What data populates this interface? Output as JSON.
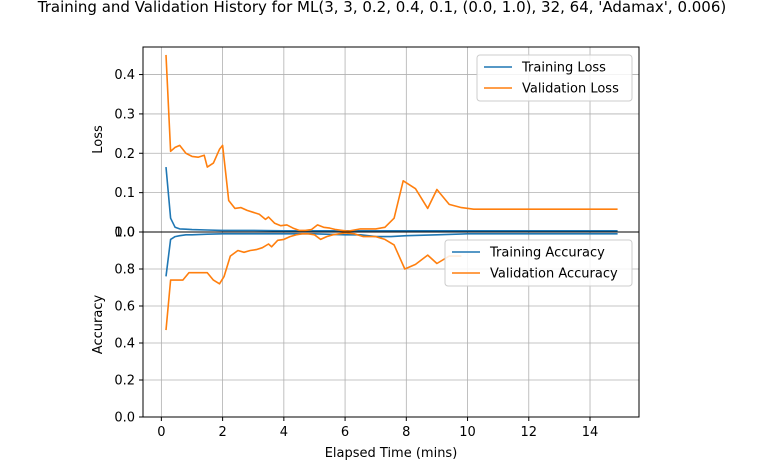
{
  "chart_data": {
    "type": "line",
    "title": "Training and Validation History for ML(3, 3, 0.2, 0.4, 0.1, (0.0, 1.0), 32, 64, 'Adamax', 0.006)",
    "xlabel": "Elapsed Time (mins)",
    "xlim": [
      -0.6,
      15.6
    ],
    "xticks": [
      0,
      2,
      4,
      6,
      8,
      10,
      12,
      14
    ],
    "grid": true,
    "panels": [
      {
        "ylabel": "Loss",
        "ylim": [
          0,
          0.47
        ],
        "yticks": [
          "0.0",
          "0.1",
          "0.2",
          "0.3",
          "0.4"
        ],
        "ytick_values": [
          0,
          0.1,
          0.2,
          0.3,
          0.4
        ],
        "legend_position": "top-right",
        "series": [
          {
            "name": "Training Loss",
            "color": "#1f77b4",
            "x": [
              0.15,
              0.3,
              0.45,
              0.6,
              0.8,
              1.0,
              1.5,
              2.0,
              3.0,
              4.0,
              5.0,
              6.0,
              7.0,
              8.0,
              9.0,
              10.0,
              11.0,
              12.0,
              13.0,
              14.0,
              14.9
            ],
            "y": [
              0.165,
              0.035,
              0.012,
              0.008,
              0.007,
              0.006,
              0.005,
              0.004,
              0.004,
              0.003,
              0.003,
              0.003,
              0.003,
              0.003,
              0.003,
              0.003,
              0.003,
              0.003,
              0.003,
              0.003,
              0.003
            ]
          },
          {
            "name": "Validation Loss",
            "color": "#ff7f0e",
            "x": [
              0.15,
              0.3,
              0.45,
              0.6,
              0.8,
              1.0,
              1.2,
              1.4,
              1.5,
              1.7,
              1.9,
              2.0,
              2.1,
              2.2,
              2.4,
              2.6,
              2.8,
              3.0,
              3.2,
              3.4,
              3.5,
              3.7,
              3.9,
              4.1,
              4.3,
              4.5,
              4.7,
              4.9,
              5.1,
              5.3,
              5.5,
              5.7,
              5.9,
              6.1,
              6.3,
              6.5,
              6.8,
              7.0,
              7.3,
              7.6,
              7.9,
              8.3,
              8.7,
              9.0,
              9.4,
              9.8,
              10.2,
              11.0,
              12.0,
              13.0,
              14.0,
              14.9
            ],
            "y": [
              0.45,
              0.205,
              0.215,
              0.22,
              0.2,
              0.192,
              0.19,
              0.195,
              0.165,
              0.175,
              0.21,
              0.22,
              0.15,
              0.08,
              0.06,
              0.062,
              0.055,
              0.05,
              0.045,
              0.032,
              0.038,
              0.022,
              0.016,
              0.018,
              0.01,
              0.004,
              0.004,
              0.006,
              0.018,
              0.012,
              0.01,
              0.006,
              0.004,
              0.002,
              0.005,
              0.008,
              0.008,
              0.008,
              0.012,
              0.035,
              0.13,
              0.11,
              0.06,
              0.108,
              0.07,
              0.062,
              0.058,
              0.058,
              0.058,
              0.058,
              0.058,
              0.058
            ]
          }
        ]
      },
      {
        "ylabel": "Accuracy",
        "ylim": [
          0,
          1.0
        ],
        "yticks": [
          "0.0",
          "0.2",
          "0.4",
          "0.6",
          "0.8",
          "1.0"
        ],
        "ytick_values": [
          0,
          0.2,
          0.4,
          0.6,
          0.8,
          1.0
        ],
        "legend_position": "top-right",
        "series": [
          {
            "name": "Training Accuracy",
            "color": "#1f77b4",
            "x": [
              0.15,
              0.3,
              0.45,
              0.6,
              0.8,
              1.0,
              1.5,
              2.0,
              3.0,
              4.0,
              5.0,
              6.0,
              6.5,
              7.0,
              7.5,
              8.0,
              9.0,
              10.0,
              11.0,
              12.0,
              13.0,
              14.0,
              14.9
            ],
            "y": [
              0.76,
              0.96,
              0.975,
              0.98,
              0.985,
              0.985,
              0.988,
              0.99,
              0.99,
              0.99,
              0.99,
              0.985,
              0.985,
              0.975,
              0.975,
              0.98,
              0.985,
              0.99,
              0.99,
              0.99,
              0.99,
              0.99,
              0.99
            ]
          },
          {
            "name": "Validation Accuracy",
            "color": "#ff7f0e",
            "x": [
              0.15,
              0.3,
              0.5,
              0.7,
              0.9,
              1.2,
              1.5,
              1.7,
              1.9,
              2.05,
              2.25,
              2.5,
              2.7,
              2.9,
              3.1,
              3.3,
              3.5,
              3.6,
              3.8,
              4.0,
              4.2,
              4.4,
              4.6,
              4.8,
              5.0,
              5.2,
              5.4,
              5.6,
              5.8,
              6.0,
              6.3,
              6.6,
              7.0,
              7.3,
              7.6,
              7.95,
              8.3,
              8.7,
              9.0,
              9.4,
              9.8
            ],
            "y": [
              0.47,
              0.74,
              0.74,
              0.74,
              0.78,
              0.78,
              0.78,
              0.74,
              0.72,
              0.76,
              0.87,
              0.9,
              0.89,
              0.9,
              0.905,
              0.915,
              0.935,
              0.92,
              0.955,
              0.96,
              0.975,
              0.985,
              0.99,
              0.99,
              0.985,
              0.96,
              0.975,
              0.985,
              0.99,
              0.995,
              0.99,
              0.975,
              0.975,
              0.96,
              0.93,
              0.8,
              0.825,
              0.875,
              0.83,
              0.87,
              0.87
            ]
          }
        ]
      }
    ]
  }
}
